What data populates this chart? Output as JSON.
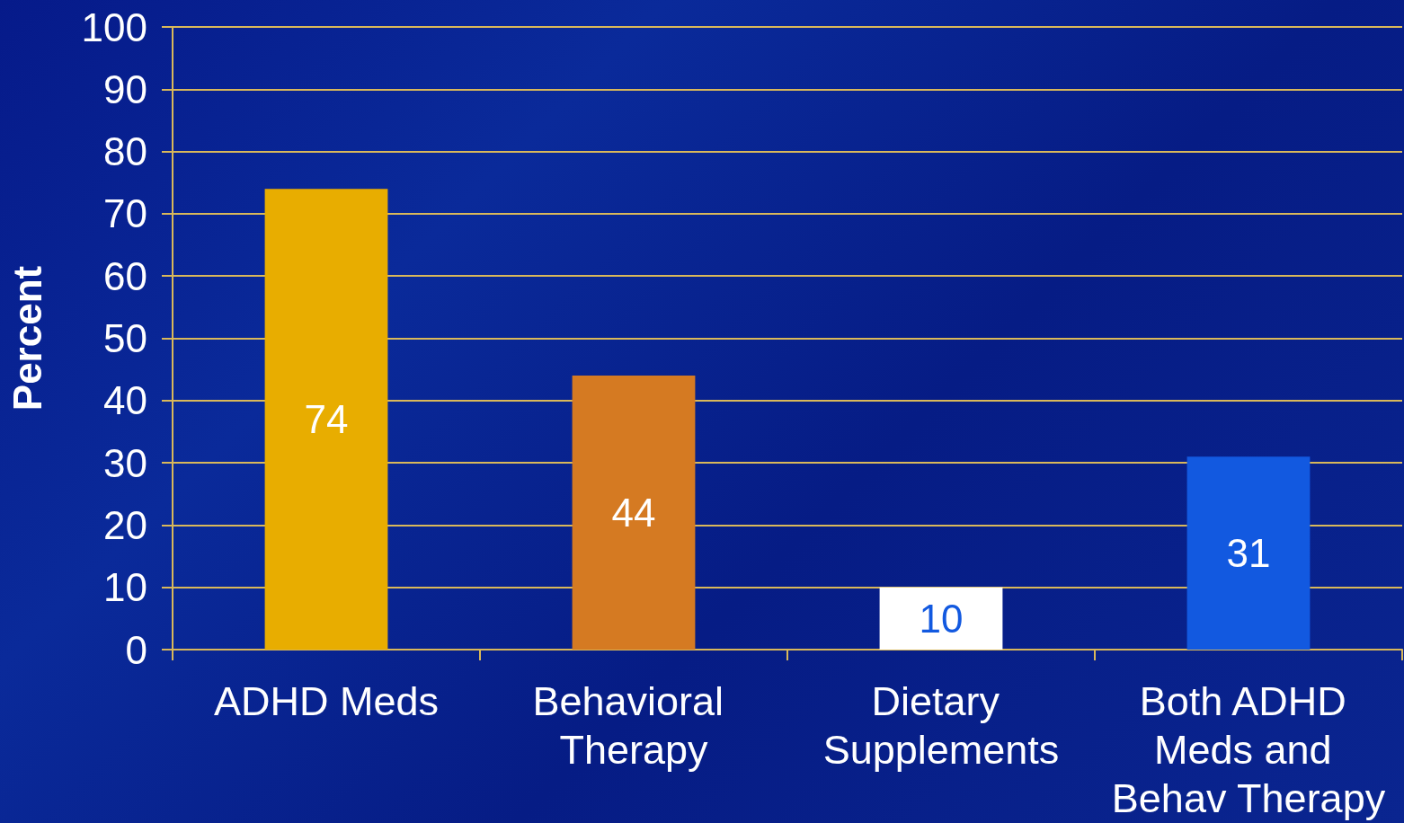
{
  "chart_data": {
    "type": "bar",
    "ylabel": "Percent",
    "categories": [
      "ADHD Meds",
      "Behavioral Therapy",
      "Dietary Supplements",
      "Both ADHD Meds and Behav Therapy"
    ],
    "values": [
      74,
      44,
      10,
      31
    ],
    "colors": [
      "#e8ad00",
      "#d57a22",
      "#ffffff",
      "#1259e0"
    ],
    "ylim": [
      0,
      100
    ],
    "yticks": [
      0,
      10,
      20,
      30,
      40,
      50,
      60,
      70,
      80,
      90,
      100
    ],
    "grid": "y",
    "data_labels": true
  }
}
